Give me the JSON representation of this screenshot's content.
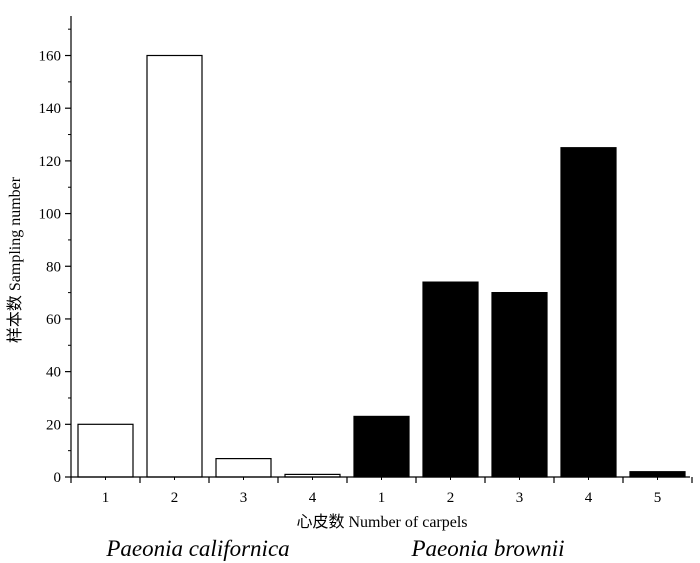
{
  "chart_data": {
    "type": "bar",
    "xlabel": "心皮数 Number of carpels",
    "ylabel": "样本数 Sampling number",
    "ylim": [
      0,
      175
    ],
    "y_ticks": [
      0,
      20,
      40,
      60,
      80,
      100,
      120,
      140,
      160
    ],
    "grid": false,
    "groups": [
      {
        "name": "Paeonia californica",
        "fill": "#ffffff",
        "categories": [
          "1",
          "2",
          "3",
          "4"
        ],
        "values": [
          20,
          160,
          7,
          1
        ]
      },
      {
        "name": "Paeonia brownii",
        "fill": "#000000",
        "categories": [
          "1",
          "2",
          "3",
          "4",
          "5"
        ],
        "values": [
          23,
          74,
          70,
          125,
          2
        ]
      }
    ]
  }
}
